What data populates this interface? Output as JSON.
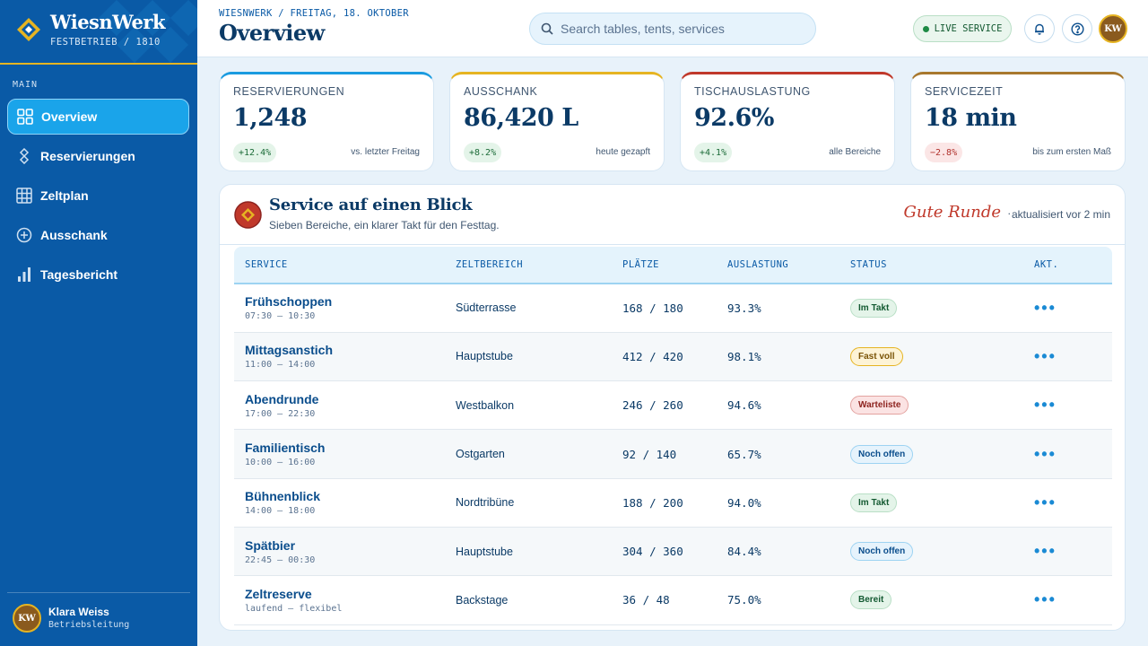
{
  "brand": {
    "name": "WiesnWerk",
    "subtitle": "FESTBETRIEB / 1810"
  },
  "nav": {
    "section": "MAIN",
    "items": [
      {
        "label": "Overview",
        "icon": "grid-icon",
        "active": true
      },
      {
        "label": "Reservierungen",
        "icon": "diamond-chain-icon"
      },
      {
        "label": "Zeltplan",
        "icon": "table-icon"
      },
      {
        "label": "Ausschank",
        "icon": "plus-circle-icon"
      },
      {
        "label": "Tagesbericht",
        "icon": "bar-chart-icon"
      }
    ]
  },
  "user": {
    "initials": "KW",
    "name": "Klara Weiss",
    "role": "Betriebsleitung"
  },
  "header": {
    "breadcrumb": "WIESNWERK / FREITAG, 18. OKTOBER",
    "title": "Overview",
    "search_placeholder": "Search tables, tents, services",
    "live_label": "LIVE SERVICE",
    "avatar_initials": "KW"
  },
  "kpis": [
    {
      "label": "RESERVIERUNGEN",
      "value": "1,248",
      "delta": "+12.4%",
      "note": "vs. letzter Freitag",
      "accent": "#1a9be0"
    },
    {
      "label": "AUSSCHANK",
      "value": "86,420 L",
      "delta": "+8.2%",
      "note": "heute gezapft",
      "accent": "#e6b422"
    },
    {
      "label": "TISCHAUSLASTUNG",
      "value": "92.6%",
      "delta": "+4.1%",
      "note": "alle Bereiche",
      "accent": "#c0392b"
    },
    {
      "label": "SERVICEZEIT",
      "value": "18 min",
      "delta": "−2.8%",
      "note": "bis zum ersten Maß",
      "accent": "#a8782e"
    }
  ],
  "panel": {
    "title": "Service auf einen Blick",
    "subtitle": "Sieben Bereiche, ein klarer Takt für den Festtag.",
    "script_label": "Gute Runde",
    "updated": "aktualisiert vor 2 min"
  },
  "table": {
    "headers": [
      "SERVICE",
      "ZELTBEREICH",
      "PLÄTZE",
      "AUSLASTUNG",
      "STATUS",
      "AKT."
    ],
    "rows": [
      {
        "name": "Frühschoppen",
        "time": "07:30 — 10:30",
        "area": "Südterrasse",
        "seats": "168 / 180",
        "load": "93.3%",
        "status": "Im Takt",
        "tone": "green",
        "action": "•••"
      },
      {
        "name": "Mittagsanstich",
        "time": "11:00 — 14:00",
        "area": "Hauptstube",
        "seats": "412 / 420",
        "load": "98.1%",
        "status": "Fast voll",
        "tone": "yellow",
        "action": "•••"
      },
      {
        "name": "Abendrunde",
        "time": "17:00 — 22:30",
        "area": "Westbalkon",
        "seats": "246 / 260",
        "load": "94.6%",
        "status": "Warteliste",
        "tone": "red",
        "action": "•••"
      },
      {
        "name": "Familientisch",
        "time": "10:00 — 16:00",
        "area": "Ostgarten",
        "seats": "92 / 140",
        "load": "65.7%",
        "status": "Noch offen",
        "tone": "blue",
        "action": "•••"
      },
      {
        "name": "Bühnenblick",
        "time": "14:00 — 18:00",
        "area": "Nordtribüne",
        "seats": "188 / 200",
        "load": "94.0%",
        "status": "Im Takt",
        "tone": "green",
        "action": "•••"
      },
      {
        "name": "Spätbier",
        "time": "22:45 — 00:30",
        "area": "Hauptstube",
        "seats": "304 / 360",
        "load": "84.4%",
        "status": "Noch offen",
        "tone": "blue",
        "action": "•••"
      },
      {
        "name": "Zeltreserve",
        "time": "laufend — flexibel",
        "area": "Backstage",
        "seats": "36 / 48",
        "load": "75.0%",
        "status": "Bereit",
        "tone": "green",
        "action": "•••"
      }
    ]
  },
  "colors": {
    "sidebar": "#0a5aa6",
    "accent_gold": "#e6b422",
    "accent_red": "#c0392b",
    "active_nav": "#1aa4ea"
  }
}
